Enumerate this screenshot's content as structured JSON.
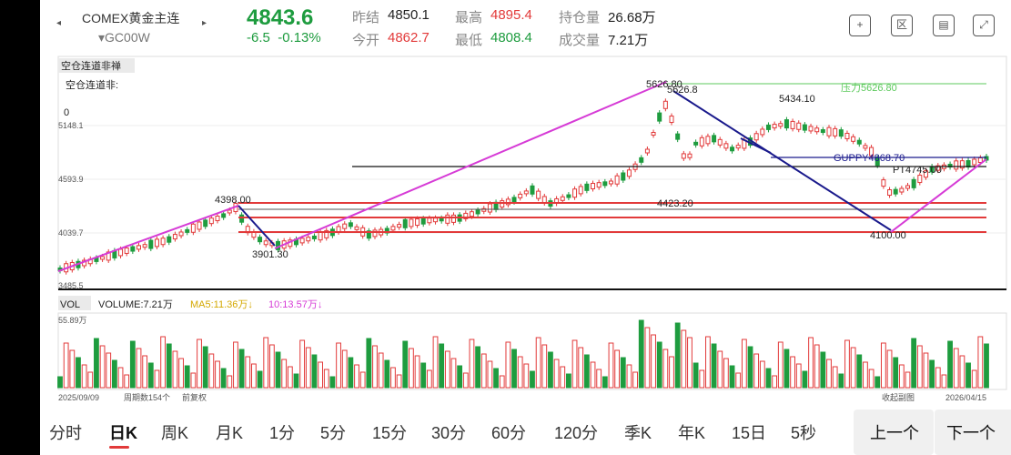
{
  "header": {
    "nav_prev": "◂",
    "nav_next": "▸",
    "symbol_name": "COMEX黄金主连",
    "symbol_code": "▾GC00W",
    "last_price": "4843.6",
    "change": "-6.5",
    "change_pct": "-0.13%",
    "quotes": [
      {
        "label": "昨结",
        "value": "4850.1",
        "tone": "blk"
      },
      {
        "label": "今开",
        "value": "4862.7",
        "tone": "up"
      },
      {
        "label": "最高",
        "value": "4895.4",
        "tone": "up"
      },
      {
        "label": "最低",
        "value": "4808.4",
        "tone": "dn"
      },
      {
        "label": "持仓量",
        "value": "26.68万",
        "tone": "blk"
      },
      {
        "label": "成交量",
        "value": "7.21万",
        "tone": "blk"
      }
    ],
    "toolbar": {
      "add_icon": "+",
      "compare_icon": "区",
      "draw_icon": "▤",
      "fullscreen_icon": "⤢"
    }
  },
  "chart": {
    "overlay_menu": "空仓连道非禅",
    "overlay_label": "空仓连道非:",
    "overlay_value": "0",
    "y_labels": [
      "5148.1",
      "4593.9",
      "4039.7",
      "3485.5"
    ],
    "annotations": {
      "high_label": "5626.80",
      "high_label2": "5626.8",
      "peak2": "5434.10",
      "left_peak": "4398.00",
      "left_low": "3901.30",
      "mid_low": "4423.20",
      "right_low": "4100.00",
      "pressure": "压力5626.80",
      "guppy": "GUPPY4868.70",
      "pt": "PT4745.00"
    },
    "volume_bar": {
      "tag": "VOL",
      "volume": "VOLUME:7.21万",
      "ma5": "MA5:11.36万↓",
      "ma10": "10:13.57万↓",
      "max": "55.89万"
    },
    "footer": {
      "start_date": "2025/09/09",
      "period_count": "周期数154个",
      "adjust": "前复权",
      "collapse": "收起副图",
      "end_date": "2026/04/15"
    },
    "colors": {
      "up": "#e23a3a",
      "down": "#1e9c3f",
      "trend": "#d63bd6",
      "channel": "#1a1a8c",
      "pressure": "#5cc95c",
      "support": "#e23a3a"
    }
  },
  "chart_data": {
    "type": "candlestick",
    "y_axis_ticks": [
      5148.1,
      4593.9,
      4039.7,
      3485.5
    ],
    "x_range": [
      "2025/09/09",
      "2026/04/15"
    ],
    "period_count": 154,
    "labeled_points": [
      {
        "label": "3901.30",
        "value": 3901.3
      },
      {
        "label": "4398.00",
        "value": 4398.0
      },
      {
        "label": "4423.20",
        "value": 4423.2
      },
      {
        "label": "4100.00",
        "value": 4100.0
      },
      {
        "label": "5626.80",
        "value": 5626.8
      },
      {
        "label": "5434.10",
        "value": 5434.1
      },
      {
        "label": "GUPPY4868.70",
        "value": 4868.7
      },
      {
        "label": "PT4745.00",
        "value": 4745.0
      }
    ],
    "volume_max": "55.89万",
    "volume_last": "7.21万",
    "ma5": "11.36万",
    "ma10": "13.57万"
  },
  "tabs": {
    "items": [
      "分时",
      "日K",
      "周K",
      "月K",
      "1分",
      "5分",
      "15分",
      "30分",
      "60分",
      "120分",
      "季K",
      "年K",
      "15日",
      "5秒"
    ],
    "active": "日K",
    "prev": "上一个",
    "next": "下一个"
  }
}
